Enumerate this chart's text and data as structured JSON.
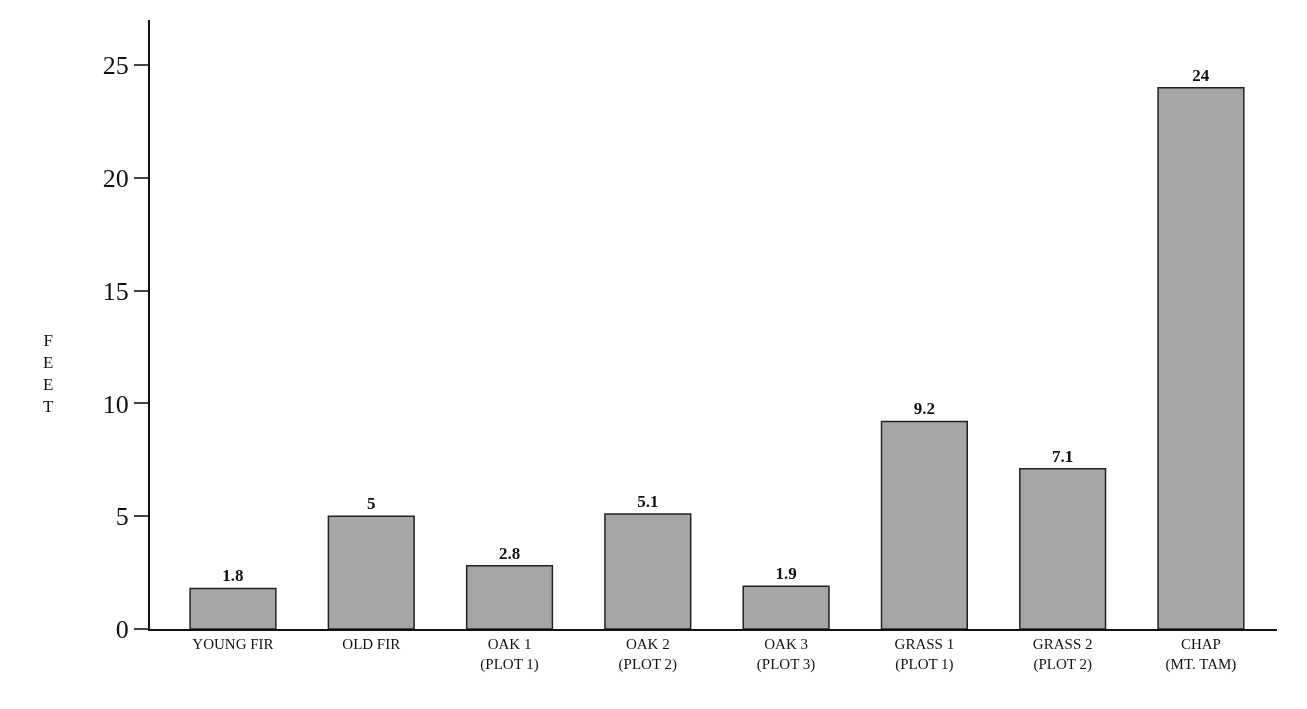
{
  "chart_data": {
    "type": "bar",
    "ylabel": "FEET",
    "categories": [
      "YOUNG FIR",
      "OLD FIR",
      "OAK 1\n(PLOT 1)",
      "OAK 2\n(PLOT 2)",
      "OAK 3\n(PLOT 3)",
      "GRASS 1\n(PLOT 1)",
      "GRASS 2\n(PLOT 2)",
      "CHAP\n(MT. TAM)"
    ],
    "values": [
      1.8,
      5,
      2.8,
      5.1,
      1.9,
      9.2,
      7.1,
      24
    ],
    "color": "#a6a6a6",
    "data_labels": true,
    "ylim": [
      0,
      27
    ],
    "yticks": [
      0,
      5,
      10,
      15,
      20,
      25
    ]
  }
}
